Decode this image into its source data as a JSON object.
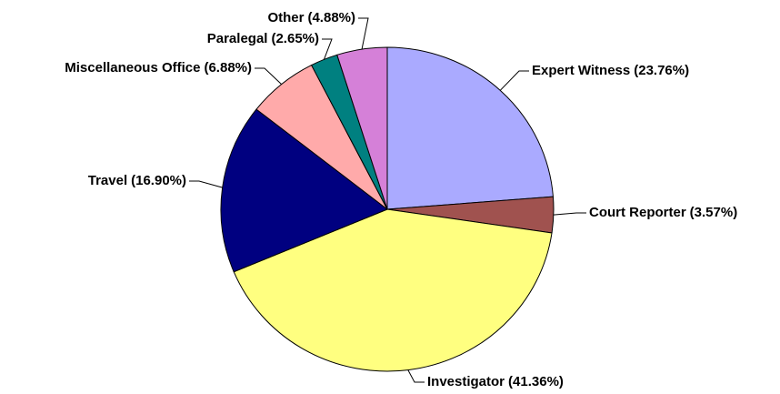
{
  "chart_data": {
    "type": "pie",
    "categories": [
      "Expert Witness",
      "Court Reporter",
      "Investigator",
      "Travel",
      "Miscellaneous Office",
      "Paralegal",
      "Other"
    ],
    "values": [
      23.76,
      3.57,
      41.36,
      16.9,
      6.88,
      2.65,
      4.88
    ],
    "value_labels": [
      "(23.76%)",
      "(3.57%)",
      "(41.36%)",
      "(16.90%)",
      "(6.88%)",
      "(2.65%)",
      "(4.88%)"
    ],
    "colors": [
      "#aaaaff",
      "#a0524f",
      "#ffff80",
      "#000080",
      "#ffaaaa",
      "#008080",
      "#d580d8"
    ]
  }
}
